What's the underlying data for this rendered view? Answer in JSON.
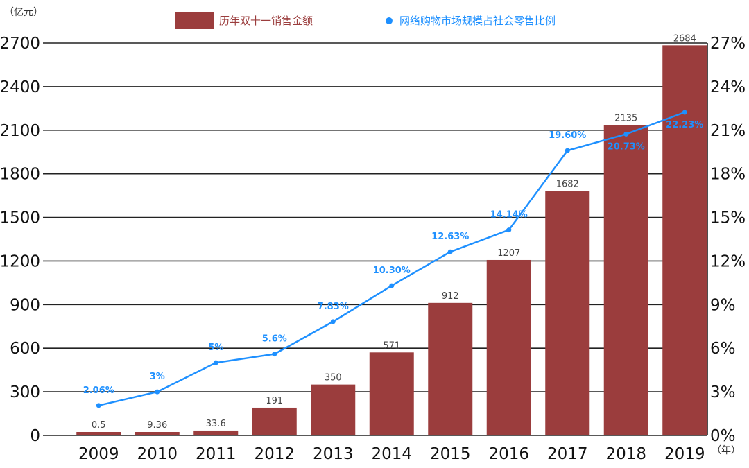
{
  "chart_data": {
    "type": "bar",
    "categories": [
      "2009",
      "2010",
      "2011",
      "2012",
      "2013",
      "2014",
      "2015",
      "2016",
      "2017",
      "2018",
      "2019"
    ],
    "series": [
      {
        "name": "历年双十一销售金额",
        "type": "bar",
        "axis": "left",
        "values": [
          0.5,
          9.36,
          33.6,
          191,
          350,
          571,
          912,
          1207,
          1682,
          2135,
          2684
        ],
        "value_labels": [
          "0.5",
          "9.36",
          "33.6",
          "191",
          "350",
          "571",
          "912",
          "1207",
          "1682",
          "2135",
          "2684"
        ],
        "color": "#9b3d3d"
      },
      {
        "name": "网络购物市场规模占社会零售比例",
        "type": "line",
        "axis": "right",
        "values": [
          2.06,
          3,
          5,
          5.6,
          7.83,
          10.3,
          12.63,
          14.14,
          19.6,
          20.73,
          22.23
        ],
        "value_labels": [
          "2.06%",
          "3%",
          "5%",
          "5.6%",
          "7.83%",
          "10.30%",
          "12.63%",
          "14.14%",
          "19.60%",
          "20.73%",
          "22.23%"
        ],
        "color": "#1e90ff"
      }
    ],
    "y_left": {
      "unit_label": "（亿元）",
      "ylim": [
        0,
        2700
      ],
      "ticks": [
        "0",
        "300",
        "600",
        "900",
        "1200",
        "1500",
        "1800",
        "2100",
        "2400",
        "2700"
      ]
    },
    "y_right": {
      "ylim": [
        0,
        27
      ],
      "ticks": [
        "0%",
        "3%",
        "6%",
        "9%",
        "12%",
        "15%",
        "18%",
        "21%",
        "24%",
        "27%"
      ]
    },
    "x_unit_label": "（年）",
    "grid": true,
    "legend_placement": "top-center"
  }
}
